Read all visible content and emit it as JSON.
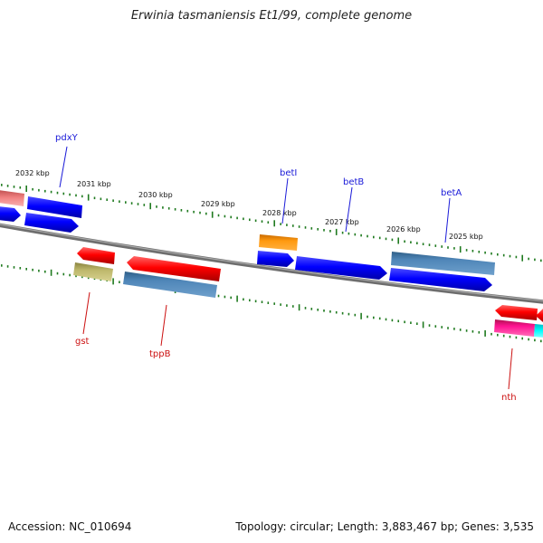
{
  "title": "Erwinia tasmaniensis Et1/99, complete genome",
  "footer": {
    "accession": "Accession: NC_010694",
    "summary": "Topology: circular; Length: 3,883,467 bp; Genes: 3,535"
  },
  "colors": {
    "forward_label": "#1a1ad8",
    "reverse_label": "#cc1111",
    "backbone": "#7a7a7a",
    "tick": "#1f7a1f"
  },
  "kbp_labels": [
    "2032 kbp",
    "2031 kbp",
    "2030 kbp",
    "2029 kbp",
    "2028 kbp",
    "2027 kbp",
    "2026 kbp",
    "2025 kbp"
  ],
  "genes": {
    "forward": [
      "pdxY",
      "betI",
      "betB",
      "betA"
    ],
    "reverse": [
      "gst",
      "tppB",
      "nth"
    ]
  }
}
